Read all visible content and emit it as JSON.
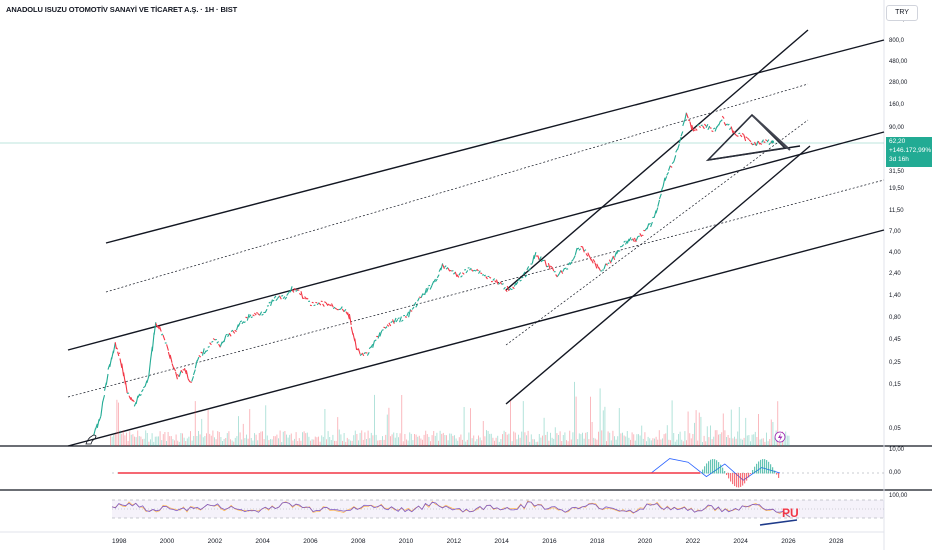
{
  "header": {
    "title": "ANADOLU ISUZU OTOMOTİV SANAYİ VE TİCARET A.Ş. · 1H · BIST",
    "currency": "TRY"
  },
  "price_label": {
    "price": "62,20",
    "change": "+146.172,99%",
    "countdown": "3d 16h"
  },
  "annotations": {
    "pu_label": "PU",
    "lightning_icon": "lightning-icon"
  },
  "colors": {
    "up": "#22ab94",
    "down": "#f23645",
    "rsi": "#7e57c2",
    "rsi_ma": "#ffb74d",
    "macd": "#2962ff",
    "price_line": "#22ab94",
    "pu_label": "#f23645"
  },
  "chart_data": [
    {
      "type": "line",
      "title": "ANADOLU ISUZU OTOMOTİV SANAYİ VE TİCARET A.Ş. · 1H · BIST",
      "y_scale": "log",
      "y_ticks": [
        "1700,0",
        "800,0",
        "480,00",
        "280,00",
        "160,0",
        "90,00",
        "31,50",
        "19,50",
        "11,50",
        "7,00",
        "4,00",
        "2,40",
        "1,40",
        "0,80",
        "0,45",
        "0,25",
        "0,15",
        "0,05"
      ],
      "x_ticks": [
        "1998",
        "2000",
        "2002",
        "2004",
        "2006",
        "2008",
        "2010",
        "2012",
        "2014",
        "2016",
        "2018",
        "2020",
        "2022",
        "2024",
        "2026",
        "2028"
      ],
      "x": [
        1996.9,
        1997.2,
        1997.5,
        1997.8,
        1998.0,
        1998.3,
        1998.6,
        1998.9,
        1999.2,
        1999.5,
        1999.8,
        2000.1,
        2000.4,
        2000.7,
        2001.0,
        2001.3,
        2001.6,
        2001.9,
        2002.2,
        2002.5,
        2002.8,
        2003.1,
        2003.4,
        2003.7,
        2004.0,
        2004.3,
        2004.6,
        2004.9,
        2005.2,
        2005.5,
        2005.8,
        2006.1,
        2006.4,
        2006.7,
        2007.0,
        2007.3,
        2007.6,
        2007.9,
        2008.2,
        2008.5,
        2008.8,
        2009.1,
        2009.4,
        2009.7,
        2010.0,
        2010.3,
        2010.6,
        2010.9,
        2011.2,
        2011.5,
        2011.8,
        2012.1,
        2012.4,
        2012.7,
        2013.0,
        2013.3,
        2013.6,
        2013.9,
        2014.2,
        2014.5,
        2014.8,
        2015.1,
        2015.4,
        2015.7,
        2016.0,
        2016.3,
        2016.6,
        2016.9,
        2017.2,
        2017.5,
        2017.8,
        2018.1,
        2018.4,
        2018.7,
        2019.0,
        2019.3,
        2019.6,
        2019.9,
        2020.2,
        2020.5,
        2020.8,
        2021.1,
        2021.4,
        2021.7,
        2022.0,
        2022.3,
        2022.6,
        2022.9,
        2023.2,
        2023.5,
        2023.8,
        2024.1,
        2024.4,
        2024.7,
        2025.0,
        2025.3
      ],
      "values": [
        0.04,
        0.07,
        0.2,
        0.4,
        0.3,
        0.12,
        0.09,
        0.12,
        0.18,
        0.7,
        0.5,
        0.3,
        0.18,
        0.22,
        0.15,
        0.3,
        0.35,
        0.45,
        0.4,
        0.5,
        0.55,
        0.7,
        0.8,
        0.85,
        0.9,
        1.1,
        1.3,
        1.25,
        1.6,
        1.5,
        1.2,
        1.05,
        1.1,
        1.1,
        1.0,
        1.0,
        0.8,
        0.35,
        0.3,
        0.35,
        0.5,
        0.6,
        0.7,
        0.75,
        0.8,
        1.0,
        1.3,
        1.6,
        2.0,
        2.8,
        2.6,
        2.2,
        2.4,
        2.7,
        2.5,
        2.2,
        2.0,
        1.8,
        1.6,
        1.7,
        2.0,
        2.6,
        3.8,
        3.2,
        2.7,
        2.3,
        2.5,
        3.2,
        4.5,
        4.0,
        3.2,
        2.5,
        3.0,
        3.5,
        4.8,
        5.5,
        5.5,
        6.5,
        8.0,
        12.0,
        25.0,
        35.0,
        60.0,
        125.0,
        80.0,
        95.0,
        90.0,
        85.0,
        110.0,
        90.0,
        75.0,
        70.0,
        62.0,
        60.0,
        62.0,
        62.2
      ]
    },
    {
      "type": "line",
      "title": "",
      "y_ticks": [
        "10,00",
        "0,00",
        "-10,00"
      ],
      "series": [
        {
          "values": [
            0,
            0,
            0,
            0,
            0,
            0,
            0,
            0,
            0,
            0,
            0,
            0,
            0,
            0,
            0,
            0,
            0,
            0,
            0,
            0,
            0,
            0,
            0,
            0,
            0,
            0,
            0,
            0,
            0,
            0,
            8,
            6,
            -2,
            5,
            -4,
            3,
            0
          ]
        }
      ]
    },
    {
      "type": "line",
      "title": "",
      "y_ticks": [
        "100,00"
      ],
      "series": [
        {
          "values": [
            55,
            60,
            45,
            52,
            48,
            58,
            50,
            42,
            55,
            62,
            48,
            53,
            45,
            58,
            50,
            47,
            60,
            52,
            44,
            56,
            49,
            63,
            51,
            46,
            57,
            53,
            42,
            59,
            50,
            45,
            55,
            40,
            62,
            48,
            35
          ]
        }
      ]
    }
  ]
}
